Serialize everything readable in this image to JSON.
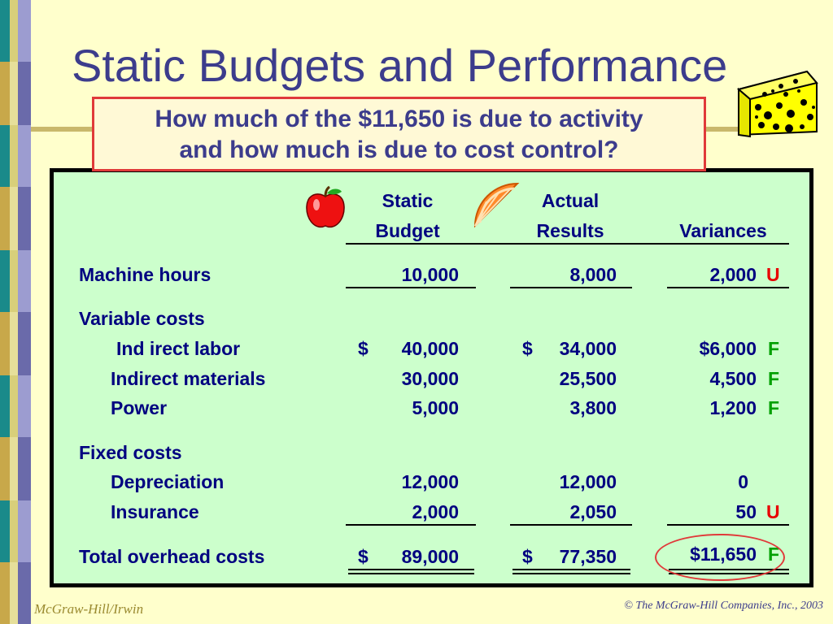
{
  "slide": {
    "title": "Static Budgets and Performance",
    "question": {
      "line1": "How much of the $11,650 is due to activity",
      "line2": "and how much is due to cost control?"
    }
  },
  "table": {
    "headers": {
      "static_budget": [
        "Static",
        "Budget"
      ],
      "actual_results": [
        "Actual",
        "Results"
      ],
      "variances": "Variances"
    },
    "rows": {
      "machine_hours": {
        "label": "Machine hours",
        "budget": "10,000",
        "actual": "8,000",
        "variance": "2,000",
        "flag": "U"
      },
      "variable_costs_header": "Variable costs",
      "indirect_labor": {
        "label": "Ind irect labor",
        "budget_sign": "$",
        "budget": "40,000",
        "actual_sign": "$",
        "actual": "34,000",
        "variance": "$6,000",
        "flag": "F"
      },
      "indirect_materials": {
        "label": "Indirect materials",
        "budget": "30,000",
        "actual": "25,500",
        "variance": "4,500",
        "flag": "F"
      },
      "power": {
        "label": "Power",
        "budget": "5,000",
        "actual": "3,800",
        "variance": "1,200",
        "flag": "F"
      },
      "fixed_costs_header": "Fixed costs",
      "depreciation": {
        "label": "Depreciation",
        "budget": "12,000",
        "actual": "12,000",
        "variance": "0"
      },
      "insurance": {
        "label": "Insurance",
        "budget": "2,000",
        "actual": "2,050",
        "variance": "50",
        "flag": "U"
      },
      "total": {
        "label": "Total overhead costs",
        "budget_sign": "$",
        "budget": "89,000",
        "actual_sign": "$",
        "actual": "77,350",
        "variance": "$11,650",
        "flag": "F"
      }
    }
  },
  "footer": {
    "left": "McGraw-Hill/Irwin",
    "right": "© The McGraw-Hill Companies, Inc., 2003"
  },
  "icons": [
    "apple-icon",
    "orange-slice-icon",
    "cheese-icon"
  ],
  "colors": {
    "background": "#ffffcc",
    "panel": "#ccffcc",
    "title": "#3c3c8c",
    "text": "#000080",
    "unfavorable": "#e80000",
    "favorable": "#00a000",
    "highlight_border": "#e03a3a"
  }
}
